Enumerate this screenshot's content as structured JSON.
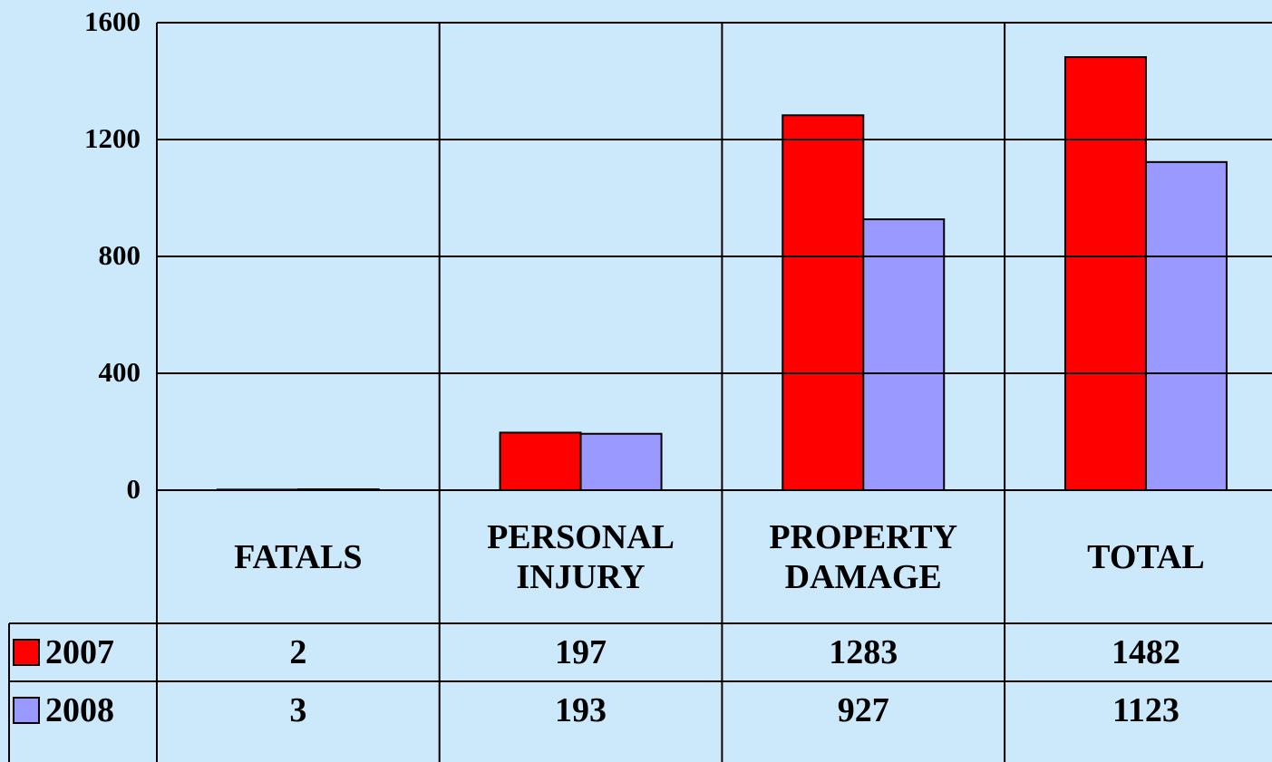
{
  "chart_data": {
    "type": "bar",
    "categories": [
      "FATALS",
      "PERSONAL INJURY",
      "PROPERTY DAMAGE",
      "TOTAL"
    ],
    "series": [
      {
        "name": "2007",
        "color": "#ff0000",
        "values": [
          2,
          197,
          1283,
          1482
        ]
      },
      {
        "name": "2008",
        "color": "#9999ff",
        "values": [
          3,
          193,
          927,
          1123
        ]
      }
    ],
    "ylim": [
      0,
      1600
    ],
    "yticks": [
      0,
      400,
      800,
      1200,
      1600
    ],
    "grid": true,
    "data_table": true
  }
}
